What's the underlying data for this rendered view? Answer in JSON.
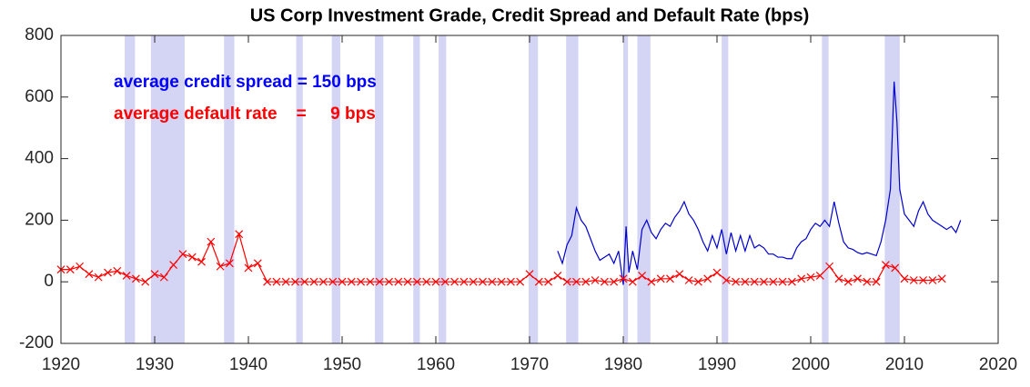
{
  "chart_data": {
    "type": "line",
    "title": "US Corp Investment Grade, Credit Spread and Default Rate (bps)",
    "annotations": [
      {
        "text": "average credit spread = 150 bps",
        "color": "#0000ff"
      },
      {
        "text": "average default rate    =     9 bps",
        "color": "#ff0000"
      }
    ],
    "xlim": [
      1920,
      2020
    ],
    "xticks": [
      1920,
      1930,
      1940,
      1950,
      1960,
      1970,
      1980,
      1990,
      2000,
      2010,
      2020
    ],
    "ylim": [
      -200,
      800
    ],
    "yticks": [
      -200,
      0,
      200,
      400,
      600,
      800
    ],
    "shaded_periods": {
      "color": "#d4d4f5",
      "ranges": [
        [
          1926.8,
          1927.9
        ],
        [
          1929.6,
          1933.2
        ],
        [
          1937.4,
          1938.5
        ],
        [
          1945.1,
          1945.8
        ],
        [
          1948.9,
          1949.8
        ],
        [
          1953.5,
          1954.4
        ],
        [
          1957.6,
          1958.3
        ],
        [
          1960.3,
          1961.1
        ],
        [
          1969.9,
          1970.9
        ],
        [
          1973.9,
          1975.2
        ],
        [
          1980.0,
          1980.5
        ],
        [
          1981.5,
          1982.9
        ],
        [
          1990.5,
          1991.2
        ],
        [
          2001.2,
          2001.9
        ],
        [
          2007.9,
          2009.5
        ]
      ]
    },
    "series": [
      {
        "color": "#0000cc",
        "marker": "none",
        "x": [
          1973.0,
          1973.5,
          1974.0,
          1974.5,
          1975.0,
          1975.5,
          1976.0,
          1976.5,
          1977.0,
          1977.5,
          1978.0,
          1978.5,
          1979.0,
          1979.5,
          1980.0,
          1980.3,
          1980.6,
          1981.0,
          1981.5,
          1982.0,
          1982.5,
          1983.0,
          1983.5,
          1984.0,
          1984.5,
          1985.0,
          1985.5,
          1986.0,
          1986.5,
          1987.0,
          1987.5,
          1988.0,
          1988.5,
          1989.0,
          1989.5,
          1990.0,
          1990.5,
          1991.0,
          1991.5,
          1992.0,
          1992.5,
          1993.0,
          1993.5,
          1994.0,
          1994.5,
          1995.0,
          1995.5,
          1996.0,
          1996.5,
          1997.0,
          1997.5,
          1998.0,
          1998.5,
          1999.0,
          1999.5,
          2000.0,
          2000.5,
          2001.0,
          2001.5,
          2002.0,
          2002.5,
          2003.0,
          2003.5,
          2004.0,
          2004.5,
          2005.0,
          2005.5,
          2006.0,
          2006.5,
          2007.0,
          2007.5,
          2008.0,
          2008.5,
          2008.9,
          2009.2,
          2009.5,
          2010.0,
          2010.5,
          2011.0,
          2011.5,
          2012.0,
          2012.5,
          2013.0,
          2013.5,
          2014.0,
          2014.5,
          2015.0,
          2015.5,
          2016.0
        ],
        "values": [
          100,
          60,
          120,
          150,
          240,
          200,
          180,
          140,
          100,
          70,
          80,
          90,
          60,
          100,
          -10,
          180,
          30,
          100,
          40,
          170,
          200,
          160,
          140,
          170,
          190,
          180,
          210,
          230,
          260,
          220,
          200,
          170,
          130,
          100,
          150,
          110,
          170,
          90,
          160,
          100,
          150,
          100,
          150,
          110,
          120,
          110,
          90,
          90,
          80,
          80,
          75,
          75,
          110,
          130,
          140,
          170,
          190,
          180,
          200,
          180,
          260,
          190,
          130,
          110,
          105,
          95,
          90,
          95,
          90,
          85,
          130,
          200,
          300,
          650,
          520,
          300,
          220,
          200,
          180,
          230,
          260,
          220,
          200,
          190,
          180,
          170,
          180,
          160,
          200
        ]
      },
      {
        "color": "#ff0000",
        "marker": "x",
        "x": [
          1920,
          1921,
          1922,
          1923,
          1924,
          1925,
          1926,
          1927,
          1928,
          1929,
          1930,
          1931,
          1932,
          1933,
          1934,
          1935,
          1936,
          1937,
          1938,
          1939,
          1940,
          1941,
          1942,
          1943,
          1944,
          1945,
          1946,
          1947,
          1948,
          1949,
          1950,
          1951,
          1952,
          1953,
          1954,
          1955,
          1956,
          1957,
          1958,
          1959,
          1960,
          1961,
          1962,
          1963,
          1964,
          1965,
          1966,
          1967,
          1968,
          1969,
          1970,
          1971,
          1972,
          1973,
          1974,
          1975,
          1976,
          1977,
          1978,
          1979,
          1980,
          1981,
          1982,
          1983,
          1984,
          1985,
          1986,
          1987,
          1988,
          1989,
          1990,
          1991,
          1992,
          1993,
          1994,
          1995,
          1996,
          1997,
          1998,
          1999,
          2000,
          2001,
          2002,
          2003,
          2004,
          2005,
          2006,
          2007,
          2008,
          2009,
          2010,
          2011,
          2012,
          2013,
          2014
        ],
        "values": [
          40,
          40,
          50,
          25,
          15,
          30,
          35,
          20,
          10,
          0,
          25,
          15,
          55,
          90,
          80,
          65,
          130,
          50,
          60,
          155,
          45,
          60,
          0,
          0,
          0,
          0,
          0,
          0,
          0,
          0,
          0,
          0,
          0,
          0,
          0,
          0,
          0,
          0,
          0,
          0,
          0,
          0,
          0,
          0,
          0,
          0,
          0,
          0,
          0,
          0,
          25,
          0,
          0,
          20,
          0,
          0,
          0,
          5,
          0,
          0,
          10,
          0,
          20,
          0,
          10,
          10,
          25,
          5,
          0,
          10,
          30,
          5,
          0,
          0,
          0,
          0,
          0,
          0,
          0,
          10,
          15,
          20,
          50,
          10,
          0,
          10,
          0,
          0,
          55,
          45,
          10,
          5,
          5,
          5,
          10
        ]
      }
    ]
  }
}
